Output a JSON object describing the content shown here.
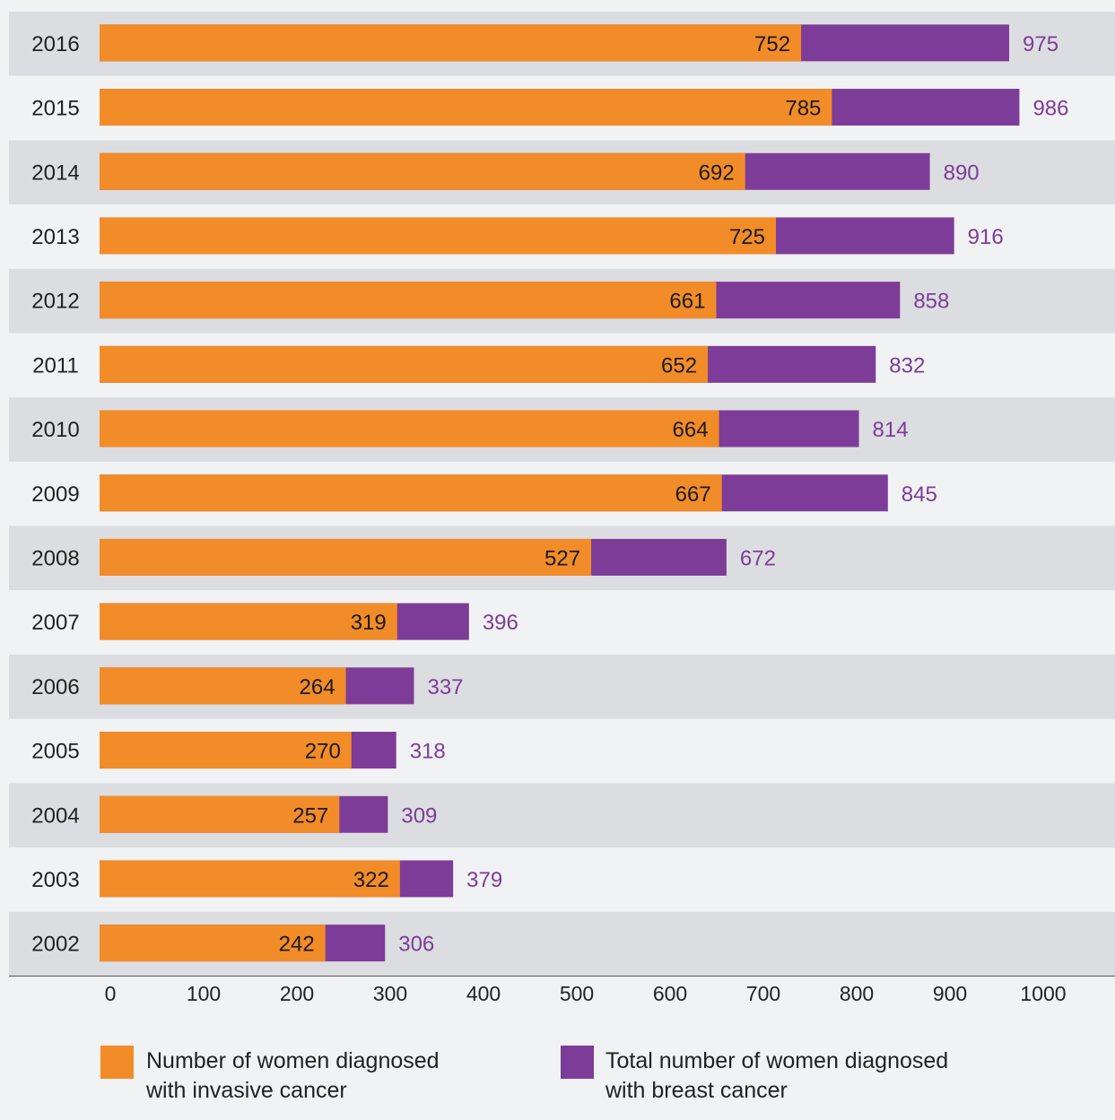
{
  "colors": {
    "invasive": "#f28c28",
    "total": "#7d3c98",
    "band_dark": "#dcdde0",
    "band_light": "#f1f2f4",
    "axis": "#555555"
  },
  "chart_data": {
    "type": "bar",
    "orientation": "horizontal",
    "stacking": "overlay",
    "categories": [
      "2016",
      "2015",
      "2014",
      "2013",
      "2012",
      "2011",
      "2010",
      "2009",
      "2008",
      "2007",
      "2006",
      "2005",
      "2004",
      "2003",
      "2002"
    ],
    "series": [
      {
        "name": "Number of women diagnosed with invasive cancer",
        "values": [
          752,
          785,
          692,
          725,
          661,
          652,
          664,
          667,
          527,
          319,
          264,
          270,
          257,
          322,
          242
        ]
      },
      {
        "name": "Total number of women diagnosed with breast cancer",
        "values": [
          975,
          986,
          890,
          916,
          858,
          832,
          814,
          845,
          672,
          396,
          337,
          318,
          309,
          379,
          306
        ]
      }
    ],
    "xlim": [
      0,
      1000
    ],
    "xticks": [
      0,
      100,
      200,
      300,
      400,
      500,
      600,
      700,
      800,
      900,
      1000
    ],
    "legend": [
      {
        "lines": [
          "Number of women diagnosed",
          "with invasive cancer"
        ],
        "color_key": "invasive"
      },
      {
        "lines": [
          "Total number of women diagnosed",
          "with breast cancer"
        ],
        "color_key": "total"
      }
    ],
    "legend_position": "bottom",
    "grid": false
  }
}
